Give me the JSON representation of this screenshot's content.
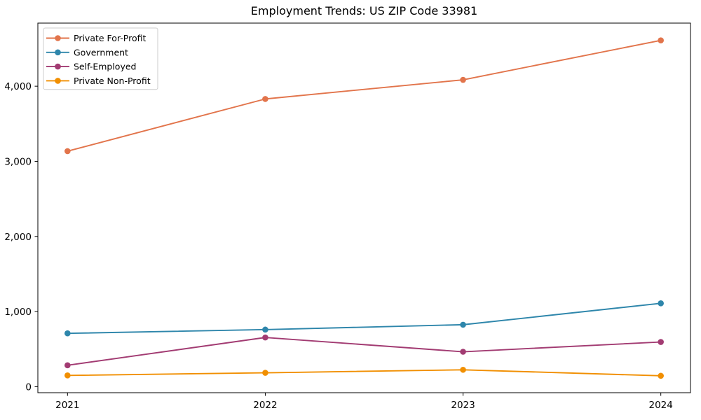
{
  "chart_data": {
    "type": "line",
    "title": "Employment Trends: US ZIP Code 33981",
    "xlabel": "",
    "ylabel": "",
    "x": [
      2021,
      2022,
      2023,
      2024
    ],
    "xtick_labels": [
      "2021",
      "2022",
      "2023",
      "2024"
    ],
    "yticks": [
      0,
      1000,
      2000,
      3000,
      4000
    ],
    "ytick_labels": [
      "0",
      "1,000",
      "2,000",
      "3,000",
      "4,000"
    ],
    "xlim": [
      2020.85,
      2024.15
    ],
    "ylim": [
      -80,
      4840
    ],
    "grid": false,
    "legend_position": "upper-left",
    "marker": "circle",
    "series": [
      {
        "name": "Private For-Profit",
        "color": "#E2744B",
        "values": [
          3135,
          3830,
          4085,
          4610
        ]
      },
      {
        "name": "Government",
        "color": "#2E86AB",
        "values": [
          710,
          760,
          825,
          1110
        ]
      },
      {
        "name": "Self-Employed",
        "color": "#A23B72",
        "values": [
          285,
          655,
          465,
          595
        ]
      },
      {
        "name": "Private Non-Profit",
        "color": "#F18F01",
        "values": [
          150,
          185,
          225,
          145
        ]
      }
    ],
    "axis_color": "#000000",
    "legend_border_color": "#cccccc",
    "background_color": "#ffffff"
  }
}
